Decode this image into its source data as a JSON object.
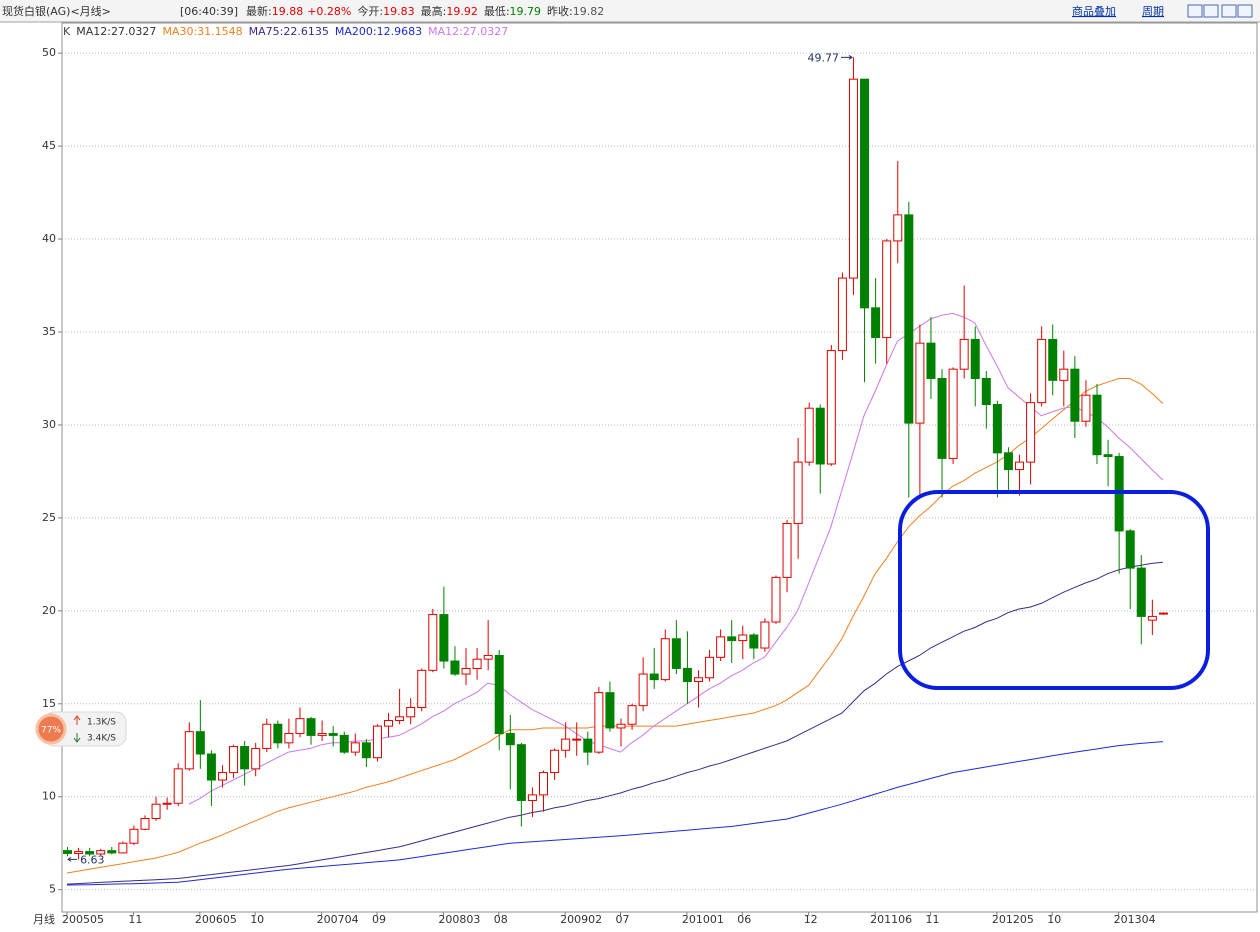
{
  "header": {
    "title": "现货白银(AG)<月线>",
    "time": "[06:40:39]",
    "quote": [
      {
        "label": "最新:",
        "value": "19.88",
        "color": "#e00000"
      },
      {
        "value": "+0.28%",
        "color": "#e00000"
      },
      {
        "label": "今开:",
        "value": "19.83",
        "color": "#e00000"
      },
      {
        "label": "最高:",
        "value": "19.92",
        "color": "#e00000"
      },
      {
        "label": "最低:",
        "value": "19.79",
        "color": "#008000"
      },
      {
        "label": "昨收:",
        "value": "19.82",
        "color": "#555555"
      }
    ],
    "links": [
      "商品叠加",
      "周期"
    ]
  },
  "speed_widget": {
    "percent": "77%",
    "up": "1.3K/S",
    "down": "3.4K/S"
  },
  "chart_data": {
    "type": "candlestick",
    "period_label": "月线",
    "categories": [
      "200505",
      null,
      null,
      null,
      null,
      null,
      "11",
      null,
      null,
      null,
      null,
      null,
      "200605",
      null,
      null,
      null,
      null,
      "10",
      null,
      null,
      null,
      null,
      null,
      "200704",
      null,
      null,
      null,
      null,
      "09",
      null,
      null,
      null,
      null,
      null,
      "200803",
      null,
      null,
      null,
      null,
      "08",
      null,
      null,
      null,
      null,
      null,
      "200902",
      null,
      null,
      null,
      null,
      "07",
      null,
      null,
      null,
      null,
      null,
      "201001",
      null,
      null,
      null,
      null,
      "06",
      null,
      null,
      null,
      null,
      null,
      "12",
      null,
      null,
      null,
      null,
      null,
      "201106",
      null,
      null,
      null,
      null,
      "11",
      null,
      null,
      null,
      null,
      null,
      "201205",
      null,
      null,
      null,
      null,
      "10",
      null,
      null,
      null,
      null,
      null,
      "201304",
      null,
      null,
      null,
      null
    ],
    "open": [
      7.1,
      6.95,
      7.05,
      6.92,
      7.1,
      6.98,
      7.5,
      8.25,
      8.83,
      9.6,
      9.65,
      11.5,
      13.5,
      12.3,
      10.9,
      11.3,
      12.7,
      11.5,
      12.6,
      13.9,
      12.9,
      13.4,
      14.2,
      13.3,
      13.4,
      13.3,
      12.4,
      12.9,
      12.1,
      13.8,
      14.1,
      14.3,
      14.8,
      16.8,
      19.8,
      17.3,
      16.6,
      16.9,
      17.4,
      17.6,
      13.4,
      12.8,
      9.8,
      10.1,
      11.3,
      12.5,
      13.1,
      13.1,
      12.4,
      15.6,
      13.7,
      13.9,
      14.9,
      16.6,
      16.3,
      18.5,
      16.9,
      16.2,
      16.4,
      17.5,
      18.6,
      18.4,
      18.7,
      18.0,
      19.4,
      21.8,
      24.7,
      28.0,
      30.9,
      27.9,
      34.0,
      37.9,
      48.6,
      36.3,
      34.7,
      39.9,
      41.3,
      30.1,
      34.4,
      32.5,
      28.2,
      33.0,
      34.6,
      32.5,
      31.1,
      28.5,
      27.6,
      28.0,
      31.2,
      34.6,
      32.4,
      33.0,
      30.2,
      31.6,
      28.4,
      28.3,
      24.3,
      22.3,
      19.5,
      19.83
    ],
    "high": [
      7.3,
      7.25,
      7.25,
      7.2,
      7.3,
      7.6,
      8.45,
      9.0,
      10.0,
      9.95,
      11.8,
      14.0,
      15.2,
      12.5,
      11.7,
      12.8,
      13.0,
      12.9,
      14.2,
      14.1,
      14.2,
      14.8,
      14.3,
      14.1,
      13.8,
      13.5,
      13.4,
      13.1,
      13.9,
      14.5,
      15.8,
      15.3,
      16.9,
      20.1,
      21.3,
      18.1,
      18.0,
      18.0,
      19.5,
      17.9,
      14.4,
      12.9,
      10.5,
      11.4,
      12.6,
      14.0,
      14.0,
      13.5,
      15.9,
      16.2,
      14.2,
      15.0,
      17.5,
      18.0,
      19.0,
      19.5,
      18.9,
      16.8,
      17.9,
      19.0,
      19.5,
      19.2,
      18.8,
      19.6,
      21.9,
      24.9,
      29.3,
      31.2,
      31.1,
      34.3,
      38.2,
      49.77,
      48.6,
      37.9,
      40.0,
      44.2,
      42.0,
      35.4,
      35.8,
      33.0,
      33.1,
      37.5,
      35.3,
      32.9,
      31.3,
      28.8,
      28.4,
      31.7,
      35.3,
      35.4,
      34.0,
      33.7,
      32.4,
      32.2,
      29.2,
      28.5,
      24.4,
      23.0,
      20.6,
      19.92
    ],
    "low": [
      6.8,
      6.63,
      6.8,
      6.85,
      6.9,
      6.95,
      7.4,
      8.2,
      8.7,
      9.3,
      9.5,
      11.4,
      11.5,
      9.5,
      10.5,
      11.0,
      10.6,
      11.1,
      12.4,
      12.6,
      12.6,
      13.2,
      12.8,
      13.0,
      12.7,
      12.3,
      12.2,
      11.6,
      11.9,
      13.2,
      13.9,
      13.9,
      14.6,
      16.7,
      16.9,
      16.5,
      16.0,
      16.3,
      16.8,
      12.5,
      10.4,
      8.4,
      8.9,
      9.2,
      10.9,
      12.1,
      12.2,
      11.7,
      12.3,
      13.5,
      12.7,
      13.6,
      14.6,
      15.8,
      16.2,
      16.6,
      15.0,
      14.8,
      16.2,
      17.3,
      17.2,
      17.4,
      17.4,
      17.8,
      19.3,
      21.0,
      22.8,
      27.8,
      26.3,
      27.8,
      33.5,
      37.0,
      32.3,
      33.3,
      33.3,
      38.7,
      26.1,
      26.2,
      31.4,
      26.1,
      27.9,
      32.5,
      31.0,
      29.8,
      26.1,
      26.4,
      26.2,
      26.8,
      31.0,
      31.6,
      31.0,
      29.3,
      29.9,
      27.9,
      26.7,
      22.0,
      20.1,
      18.2,
      18.7,
      19.79
    ],
    "close": [
      6.95,
      7.05,
      6.92,
      7.1,
      6.98,
      7.5,
      8.25,
      8.83,
      9.6,
      9.65,
      11.5,
      13.5,
      12.3,
      10.9,
      11.3,
      12.7,
      11.5,
      12.6,
      13.9,
      12.9,
      13.4,
      14.2,
      13.3,
      13.4,
      13.3,
      12.4,
      12.9,
      12.1,
      13.8,
      14.1,
      14.3,
      14.8,
      16.8,
      19.8,
      17.3,
      16.6,
      16.9,
      17.4,
      17.6,
      13.4,
      12.8,
      9.8,
      10.1,
      11.3,
      12.5,
      13.1,
      13.1,
      12.4,
      15.6,
      13.7,
      13.9,
      14.9,
      16.6,
      16.3,
      18.5,
      16.9,
      16.2,
      16.4,
      17.5,
      18.6,
      18.4,
      18.7,
      18.0,
      19.4,
      21.8,
      24.7,
      28.0,
      30.9,
      27.9,
      34.0,
      37.9,
      48.6,
      36.3,
      34.7,
      39.9,
      41.3,
      30.1,
      34.4,
      32.5,
      28.2,
      33.0,
      34.6,
      32.5,
      31.1,
      28.5,
      27.6,
      28.0,
      31.2,
      34.6,
      32.4,
      33.0,
      30.2,
      31.6,
      28.4,
      28.3,
      24.3,
      22.3,
      19.7,
      19.7,
      19.88
    ],
    "up_color": "#e00000",
    "down_color": "#008000",
    "legend_prefix": [
      {
        "text": "K",
        "color": "#444444"
      },
      {
        "text": "MA12:27.0327",
        "color": "#333333"
      }
    ],
    "series": [
      {
        "name": "MA30:31.1548",
        "color": "#f08020",
        "values": [
          5.9,
          6.0,
          6.1,
          6.2,
          6.3,
          6.4,
          6.5,
          6.6,
          6.7,
          6.85,
          7.0,
          7.25,
          7.5,
          7.7,
          7.95,
          8.2,
          8.45,
          8.7,
          8.95,
          9.2,
          9.4,
          9.55,
          9.7,
          9.85,
          10.0,
          10.15,
          10.3,
          10.5,
          10.65,
          10.8,
          11.0,
          11.2,
          11.4,
          11.6,
          11.8,
          12.0,
          12.3,
          12.6,
          12.9,
          13.3,
          13.6,
          13.6,
          13.6,
          13.7,
          13.7,
          13.7,
          13.7,
          13.7,
          13.8,
          13.8,
          13.8,
          13.8,
          13.8,
          13.8,
          13.8,
          13.8,
          13.9,
          14.0,
          14.1,
          14.2,
          14.3,
          14.4,
          14.5,
          14.7,
          14.9,
          15.2,
          15.6,
          16.0,
          16.8,
          17.6,
          18.5,
          19.7,
          20.8,
          22.0,
          22.8,
          23.7,
          24.5,
          25.1,
          25.6,
          26.2,
          26.7,
          27.0,
          27.4,
          27.7,
          28.0,
          28.4,
          28.9,
          29.3,
          29.8,
          30.3,
          30.8,
          31.3,
          31.8,
          32.1,
          32.3,
          32.5,
          32.5,
          32.2,
          31.7,
          31.1548
        ]
      },
      {
        "name": "MA75:22.6135",
        "color": "#3a2a8c",
        "values": [
          5.3,
          5.33,
          5.36,
          5.39,
          5.42,
          5.45,
          5.48,
          5.51,
          5.54,
          5.57,
          5.6,
          5.67,
          5.74,
          5.81,
          5.88,
          5.95,
          6.02,
          6.09,
          6.16,
          6.23,
          6.3,
          6.4,
          6.5,
          6.6,
          6.7,
          6.8,
          6.9,
          7.0,
          7.1,
          7.2,
          7.3,
          7.46,
          7.62,
          7.78,
          7.94,
          8.1,
          8.26,
          8.42,
          8.58,
          8.74,
          8.9,
          9.0,
          9.15,
          9.25,
          9.4,
          9.5,
          9.65,
          9.8,
          9.9,
          10.05,
          10.2,
          10.4,
          10.55,
          10.75,
          10.9,
          11.1,
          11.3,
          11.45,
          11.65,
          11.8,
          12.0,
          12.2,
          12.4,
          12.6,
          12.8,
          13.0,
          13.3,
          13.6,
          13.9,
          14.2,
          14.5,
          15.1,
          15.7,
          16.1,
          16.6,
          17.0,
          17.3,
          17.6,
          18.0,
          18.3,
          18.6,
          18.9,
          19.1,
          19.4,
          19.6,
          19.9,
          20.1,
          20.2,
          20.4,
          20.7,
          21.0,
          21.25,
          21.5,
          21.7,
          22.0,
          22.2,
          22.35,
          22.45,
          22.55,
          22.6135
        ]
      },
      {
        "name": "MA200:12.9683",
        "color": "#1f2ad0",
        "values": [
          5.25,
          5.26,
          5.27,
          5.28,
          5.3,
          5.31,
          5.32,
          5.34,
          5.36,
          5.38,
          5.4,
          5.47,
          5.54,
          5.61,
          5.68,
          5.75,
          5.82,
          5.89,
          5.96,
          6.03,
          6.1,
          6.15,
          6.2,
          6.25,
          6.3,
          6.35,
          6.4,
          6.45,
          6.5,
          6.55,
          6.6,
          6.69,
          6.78,
          6.87,
          6.96,
          7.05,
          7.14,
          7.23,
          7.32,
          7.41,
          7.5,
          7.54,
          7.58,
          7.62,
          7.66,
          7.7,
          7.74,
          7.78,
          7.82,
          7.86,
          7.9,
          7.95,
          8.0,
          8.05,
          8.1,
          8.15,
          8.2,
          8.25,
          8.3,
          8.35,
          8.4,
          8.48,
          8.56,
          8.64,
          8.72,
          8.8,
          8.96,
          9.12,
          9.28,
          9.44,
          9.6,
          9.78,
          9.96,
          10.14,
          10.32,
          10.5,
          10.66,
          10.82,
          10.98,
          11.14,
          11.3,
          11.4,
          11.5,
          11.6,
          11.7,
          11.8,
          11.9,
          12.0,
          12.1,
          12.2,
          12.3,
          12.39,
          12.48,
          12.57,
          12.66,
          12.75,
          12.81,
          12.87,
          12.92,
          12.9683
        ]
      },
      {
        "name": "MA12:27.0327",
        "color": "#cc77ee",
        "values": [
          null,
          null,
          null,
          null,
          null,
          null,
          null,
          null,
          null,
          null,
          null,
          9.6,
          9.9,
          10.3,
          10.6,
          10.9,
          11.2,
          11.5,
          11.8,
          12.1,
          12.4,
          12.5,
          12.6,
          12.8,
          12.9,
          12.9,
          13.0,
          13.0,
          13.1,
          13.2,
          13.3,
          13.6,
          13.9,
          14.3,
          14.6,
          15.0,
          15.3,
          15.6,
          16.1,
          16.0,
          15.5,
          15.1,
          14.7,
          14.4,
          14.1,
          13.8,
          13.4,
          13.0,
          12.8,
          12.6,
          12.4,
          12.9,
          13.3,
          13.8,
          14.2,
          14.6,
          15.0,
          15.4,
          15.8,
          16.1,
          16.5,
          16.8,
          17.2,
          17.5,
          18.3,
          19.1,
          20.0,
          21.5,
          23.0,
          24.5,
          26.5,
          28.5,
          30.5,
          31.8,
          33.2,
          34.5,
          34.9,
          35.3,
          35.7,
          35.9,
          36.0,
          35.8,
          35.5,
          34.3,
          33.2,
          32.0,
          31.5,
          31.0,
          30.5,
          30.7,
          30.9,
          31.0,
          30.7,
          30.4,
          29.9,
          29.3,
          28.8,
          28.2,
          27.6,
          27.0327
        ]
      }
    ],
    "ylim": [
      3.8,
      50.6
    ],
    "yticks": [
      5,
      10,
      15,
      20,
      25,
      30,
      35,
      40,
      45,
      50
    ],
    "grid": true
  }
}
